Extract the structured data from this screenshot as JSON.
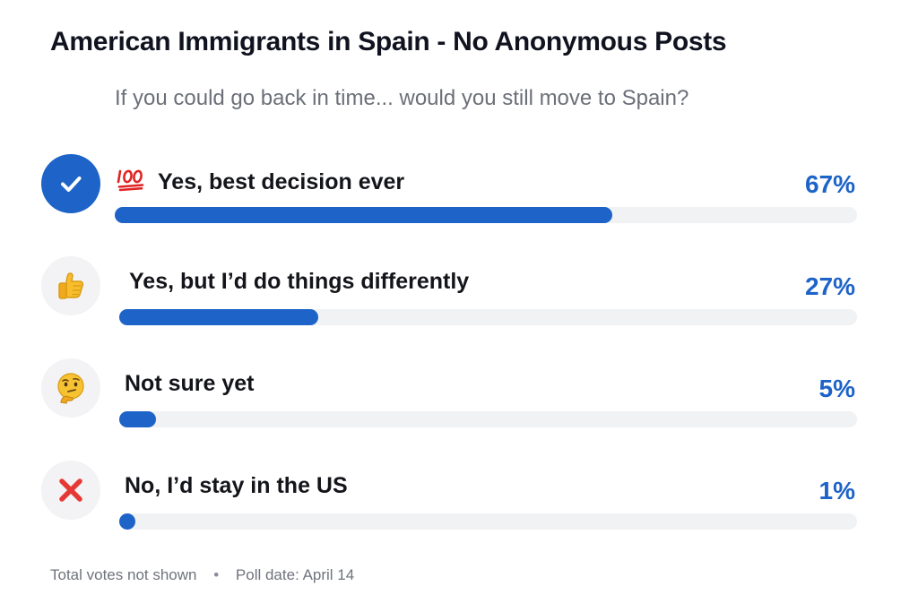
{
  "header": {
    "group_title": "American Immigrants in Spain - No Anonymous Posts"
  },
  "poll": {
    "question": "If you could go back in time... would you still move to Spain?",
    "options": [
      {
        "label": "Yes, best decision ever",
        "percent_label": "67%",
        "percent": 67,
        "emoji": "💯",
        "icon": "checkmark-icon",
        "selected": true
      },
      {
        "label": "Yes, but I’d do things differently",
        "percent_label": "27%",
        "percent": 27,
        "icon": "thumbs-up-icon",
        "selected": false
      },
      {
        "label": "Not sure yet",
        "percent_label": "5%",
        "percent": 5,
        "icon": "thinking-face-icon",
        "selected": false
      },
      {
        "label": "No, I’d stay in the US",
        "percent_label": "1%",
        "percent": 1,
        "icon": "red-x-icon",
        "selected": false
      }
    ],
    "colors": {
      "accent": "#1d63c8",
      "track": "#f1f2f4",
      "icon_bg": "#f3f3f5",
      "red_x": "#e53935"
    }
  },
  "footer": {
    "votes_text": "Total votes not shown",
    "separator": "•",
    "date_text": "Poll date: April 14"
  }
}
